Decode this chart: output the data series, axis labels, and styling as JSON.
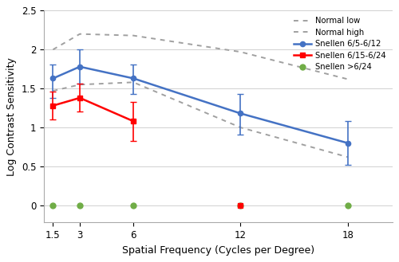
{
  "x": [
    1.5,
    3,
    6,
    12,
    18
  ],
  "blue_y": [
    1.63,
    1.78,
    1.63,
    1.18,
    0.8
  ],
  "blue_yerr_lo": [
    0.25,
    0.22,
    0.2,
    0.27,
    0.28
  ],
  "blue_yerr_hi": [
    0.18,
    0.22,
    0.18,
    0.25,
    0.28
  ],
  "red_x": [
    1.5,
    3,
    6
  ],
  "red_y": [
    1.28,
    1.38,
    1.08
  ],
  "red_yerr_lo": [
    0.18,
    0.18,
    0.25
  ],
  "red_yerr_hi": [
    0.18,
    0.18,
    0.25
  ],
  "red_dot_x": [
    12
  ],
  "red_dot_y": [
    0
  ],
  "green_x": [
    1.5,
    3,
    6,
    12,
    18
  ],
  "green_y": [
    0,
    0,
    0,
    0,
    0
  ],
  "normal_low_x": [
    1.5,
    3,
    6,
    12,
    18
  ],
  "normal_low_y": [
    1.47,
    1.55,
    1.58,
    1.0,
    0.62
  ],
  "normal_high_x": [
    1.5,
    3,
    6,
    12,
    18
  ],
  "normal_high_y": [
    2.0,
    2.2,
    2.18,
    1.97,
    1.62
  ],
  "xlabel": "Spatial Frequency (Cycles per Degree)",
  "ylabel": "Log Contrast Sensitivity",
  "yticks": [
    0,
    0.5,
    1.0,
    1.5,
    2.0,
    2.5
  ],
  "ytick_labels": [
    "0",
    "0.5",
    "1",
    "1.5",
    "2",
    "2.5"
  ],
  "xticks": [
    1.5,
    3,
    6,
    12,
    18
  ],
  "xtick_labels": [
    "1.5",
    "3",
    "6",
    "12",
    "18"
  ],
  "ylim": [
    -0.22,
    2.5
  ],
  "xlim": [
    1.0,
    20.5
  ],
  "blue_color": "#4472C4",
  "red_color": "#FF0000",
  "green_color": "#70AD47",
  "normal_low_color": "#A0A0A0",
  "normal_high_color": "#A0A0A0",
  "legend_normal_low": "Normal low",
  "legend_normal_high": "Normal high",
  "legend_blue": "Snellen 6/5-6/12",
  "legend_red": "Snellen 6/15-6/24",
  "legend_green": "Snellen >6/24",
  "background_color": "#FFFFFF",
  "grid_color": "#D0D0D0",
  "figsize": [
    5.0,
    3.29
  ],
  "dpi": 100
}
